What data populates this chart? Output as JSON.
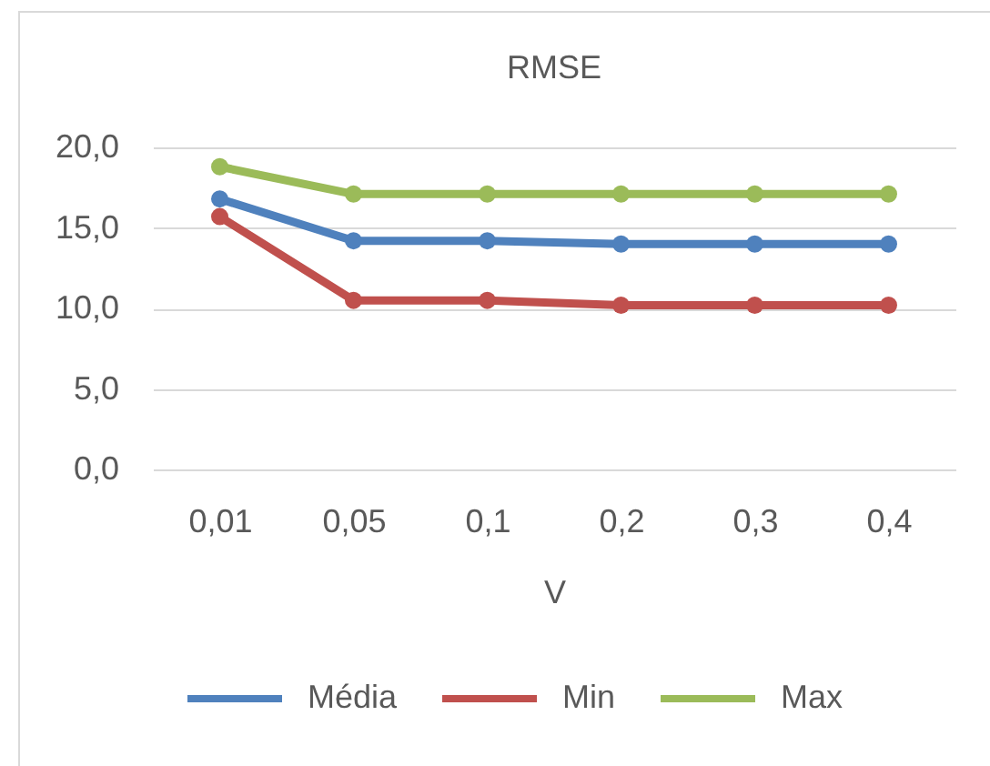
{
  "chart_data": {
    "type": "line",
    "title": "RMSE",
    "xlabel": "V",
    "categories": [
      "0,01",
      "0,05",
      "0,1",
      "0,2",
      "0,3",
      "0,4"
    ],
    "series": [
      {
        "name": "Média",
        "color": "#4f81bd",
        "values": [
          16.8,
          14.2,
          14.2,
          14.0,
          14.0,
          14.0
        ]
      },
      {
        "name": "Min",
        "color": "#c0504d",
        "values": [
          15.7,
          10.5,
          10.5,
          10.2,
          10.2,
          10.2
        ]
      },
      {
        "name": "Max",
        "color": "#9bbb59",
        "values": [
          18.8,
          17.1,
          17.1,
          17.1,
          17.1,
          17.1
        ]
      }
    ],
    "ylim": [
      0,
      20
    ],
    "yticks": [
      {
        "value": 0,
        "label": "0,0"
      },
      {
        "value": 5,
        "label": "5,0"
      },
      {
        "value": 10,
        "label": "10,0"
      },
      {
        "value": 15,
        "label": "15,0"
      },
      {
        "value": 20,
        "label": "20,0"
      }
    ],
    "grid": "y",
    "legend": "bottom",
    "marker": "circle",
    "line_style": "solid"
  }
}
